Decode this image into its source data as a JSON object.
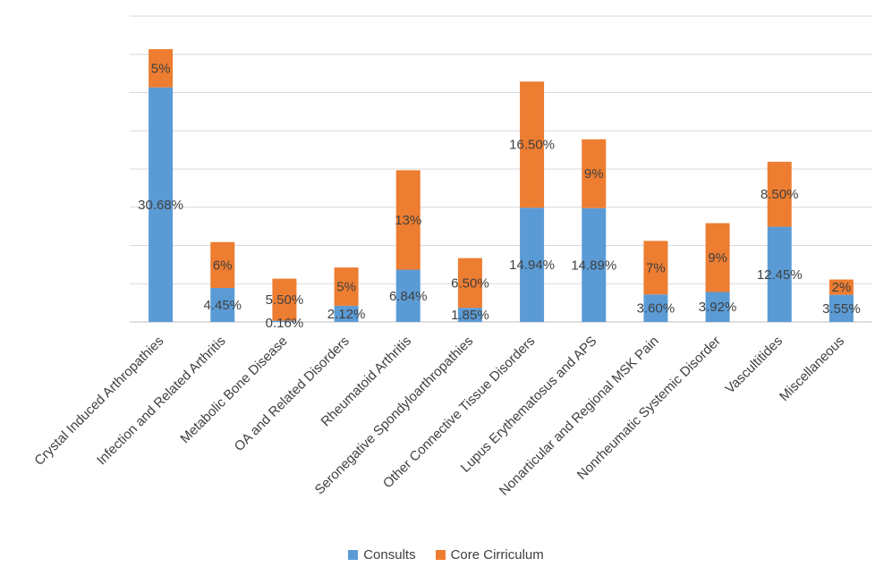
{
  "chart_data": {
    "type": "bar",
    "stacked": true,
    "title": "",
    "xlabel": "",
    "ylabel": "",
    "ylim": [
      0,
      40
    ],
    "grid": true,
    "legend_position": "bottom",
    "categories": [
      "Crystal Induced Arthropathies",
      "Infection and Related Arthritis",
      "Metabolic Bone Disease",
      "OA and Related Disorders",
      "Rheumatoid Arthritis",
      "Seronegative Spondyloarthropathies",
      "Other Connective Tissue Disorders",
      "Lupus Erythematosus and APS",
      "Nonarticular and Regional MSK Pain",
      "Nonrheumatic Systemic Disorder",
      "Vascultitides",
      "Miscellaneous"
    ],
    "series": [
      {
        "name": "Consults",
        "color": "#5B9BD5",
        "values": [
          30.68,
          4.45,
          0.16,
          2.12,
          6.84,
          1.85,
          14.94,
          14.89,
          3.6,
          3.92,
          12.45,
          3.55
        ],
        "labels": [
          "30.68%",
          "4.45%",
          "0.16%",
          "2.12%",
          "6.84%",
          "1.85%",
          "14.94%",
          "14.89%",
          "3.60%",
          "3.92%",
          "12.45%",
          "3.55%"
        ]
      },
      {
        "name": "Core Cirriculum",
        "color": "#ED7D31",
        "values": [
          5,
          6,
          5.5,
          5,
          13,
          6.5,
          16.5,
          9,
          7,
          9,
          8.5,
          2
        ],
        "labels": [
          "5%",
          "6%",
          "5.50%",
          "5%",
          "13%",
          "6.50%",
          "16.50%",
          "9%",
          "7%",
          "9%",
          "8.50%",
          "2%"
        ]
      }
    ]
  }
}
